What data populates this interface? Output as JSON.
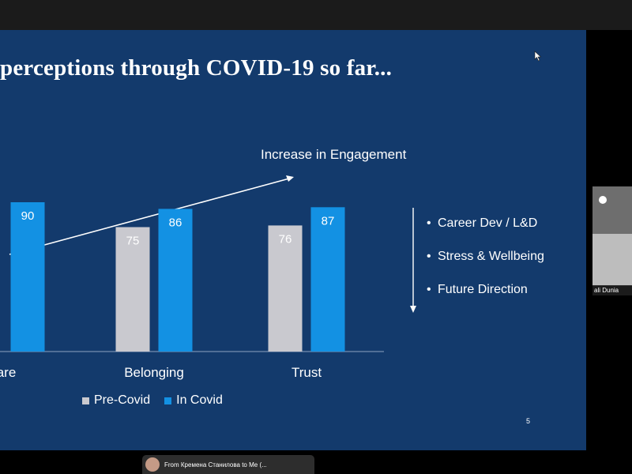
{
  "slide": {
    "title": "perceptions through COVID-19 so far...",
    "annotation": "Increase in Engagement",
    "page_number": "5",
    "bullets": [
      "Career Dev / L&D",
      "Stress & Wellbeing",
      "Future Direction"
    ]
  },
  "chart_data": {
    "type": "bar",
    "categories": [
      "are",
      "Belonging",
      "Trust"
    ],
    "series": [
      {
        "name": "Pre-Covid",
        "values": [
          null,
          75,
          76
        ],
        "color": "#c9c9cf"
      },
      {
        "name": "In Covid",
        "values": [
          90,
          86,
          87
        ],
        "color": "#1391e3"
      }
    ],
    "ylim": [
      0,
      100
    ]
  },
  "legend": [
    "Pre-Covid",
    "In Covid"
  ],
  "participant": {
    "name": "ali Dunia"
  },
  "chat": {
    "text": "From Кремена Станилова to Me (..."
  },
  "icons": {
    "cursor": "cursor-icon",
    "arrow": "down-arrow-icon"
  }
}
